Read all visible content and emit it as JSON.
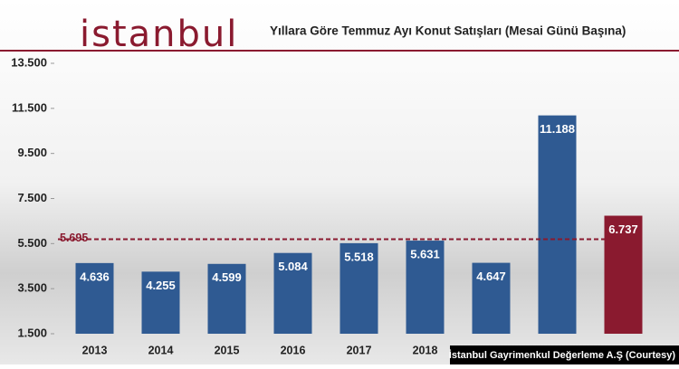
{
  "chart_data": {
    "type": "bar",
    "title": "Yıllara Göre Temmuz Ayı Konut Satışları (Mesai Günü Başına)",
    "logo": "istanbul",
    "source": "İstanbul Gayrimenkul Değerleme A.Ş (Courtesy)",
    "categories": [
      "2013",
      "2014",
      "2015",
      "2016",
      "2017",
      "2018",
      null,
      null,
      null
    ],
    "values": [
      4636,
      4255,
      4599,
      5084,
      5518,
      5631,
      4647,
      11188,
      6737
    ],
    "value_labels": [
      "4.636",
      "4.255",
      "4.599",
      "5.084",
      "5.518",
      "5.631",
      "4.647",
      "11.188",
      "6.737"
    ],
    "colors": [
      "#2f5a92",
      "#2f5a92",
      "#2f5a92",
      "#2f5a92",
      "#2f5a92",
      "#2f5a92",
      "#2f5a92",
      "#2f5a92",
      "#8a1a2f"
    ],
    "ylim": [
      1500,
      13500
    ],
    "yticks": [
      {
        "value": 1500,
        "label": "1.500"
      },
      {
        "value": 3500,
        "label": "3.500"
      },
      {
        "value": 5500,
        "label": "5.500"
      },
      {
        "value": 7500,
        "label": "7.500"
      },
      {
        "value": 9500,
        "label": "9.500"
      },
      {
        "value": 11500,
        "label": "11.500"
      },
      {
        "value": 13500,
        "label": "13.500"
      }
    ],
    "reference_line": {
      "value": 5695,
      "label": "5.695",
      "color": "#8a1a2f"
    },
    "grid": false
  }
}
